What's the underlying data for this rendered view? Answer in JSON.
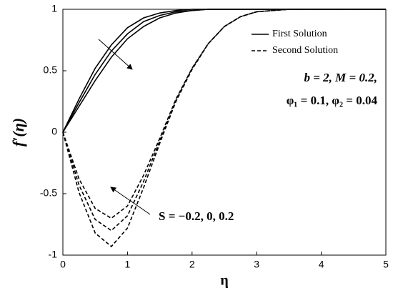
{
  "chart_data": {
    "type": "line",
    "x_label": "η",
    "y_label": "f′(η)",
    "x": [
      0,
      0.25,
      0.5,
      0.75,
      1,
      1.25,
      1.5,
      1.75,
      2,
      2.25,
      2.5,
      2.75,
      3,
      3.25,
      3.5,
      3.75,
      4,
      4.25,
      4.5,
      4.75,
      5
    ],
    "series": [
      {
        "name": "First Solution",
        "color": "#000000",
        "dash": "solid",
        "lines": [
          [
            0,
            0.27,
            0.52,
            0.71,
            0.85,
            0.93,
            0.97,
            0.99,
            1,
            1,
            1,
            1,
            1,
            1,
            1,
            1,
            1,
            1,
            1,
            1,
            1
          ],
          [
            0,
            0.24,
            0.47,
            0.66,
            0.8,
            0.9,
            0.95,
            0.98,
            0.99,
            1,
            1,
            1,
            1,
            1,
            1,
            1,
            1,
            1,
            1,
            1,
            1
          ],
          [
            0,
            0.21,
            0.42,
            0.61,
            0.76,
            0.86,
            0.93,
            0.97,
            0.99,
            1,
            1,
            1,
            1,
            1,
            1,
            1,
            1,
            1,
            1,
            1,
            1
          ]
        ]
      },
      {
        "name": "Second Solution",
        "color": "#000000",
        "dash": "dashed",
        "lines": [
          [
            0,
            -0.38,
            -0.62,
            -0.7,
            -0.6,
            -0.35,
            -0.05,
            0.27,
            0.52,
            0.72,
            0.86,
            0.94,
            0.98,
            0.99,
            1,
            1,
            1,
            1,
            1,
            1,
            1
          ],
          [
            0,
            -0.43,
            -0.71,
            -0.8,
            -0.68,
            -0.4,
            -0.07,
            0.26,
            0.52,
            0.72,
            0.86,
            0.94,
            0.98,
            0.99,
            1,
            1,
            1,
            1,
            1,
            1,
            1
          ],
          [
            0,
            -0.49,
            -0.82,
            -0.93,
            -0.78,
            -0.45,
            -0.09,
            0.25,
            0.51,
            0.72,
            0.86,
            0.94,
            0.98,
            0.99,
            1,
            1,
            1,
            1,
            1,
            1,
            1
          ]
        ]
      }
    ],
    "annotations": [
      "b = 2, M = 0.2,",
      "φ₁ = 0.1, φ₂ = 0.04",
      "S = −0.2, 0, 0.2"
    ],
    "xlim": [
      0,
      5
    ],
    "xticks": [
      0,
      1,
      2,
      3,
      4,
      5
    ],
    "ylim": [
      -1,
      1
    ],
    "yticks": [
      -1,
      -0.5,
      0,
      0.5,
      1
    ],
    "grid": false,
    "legend": "upper right"
  }
}
